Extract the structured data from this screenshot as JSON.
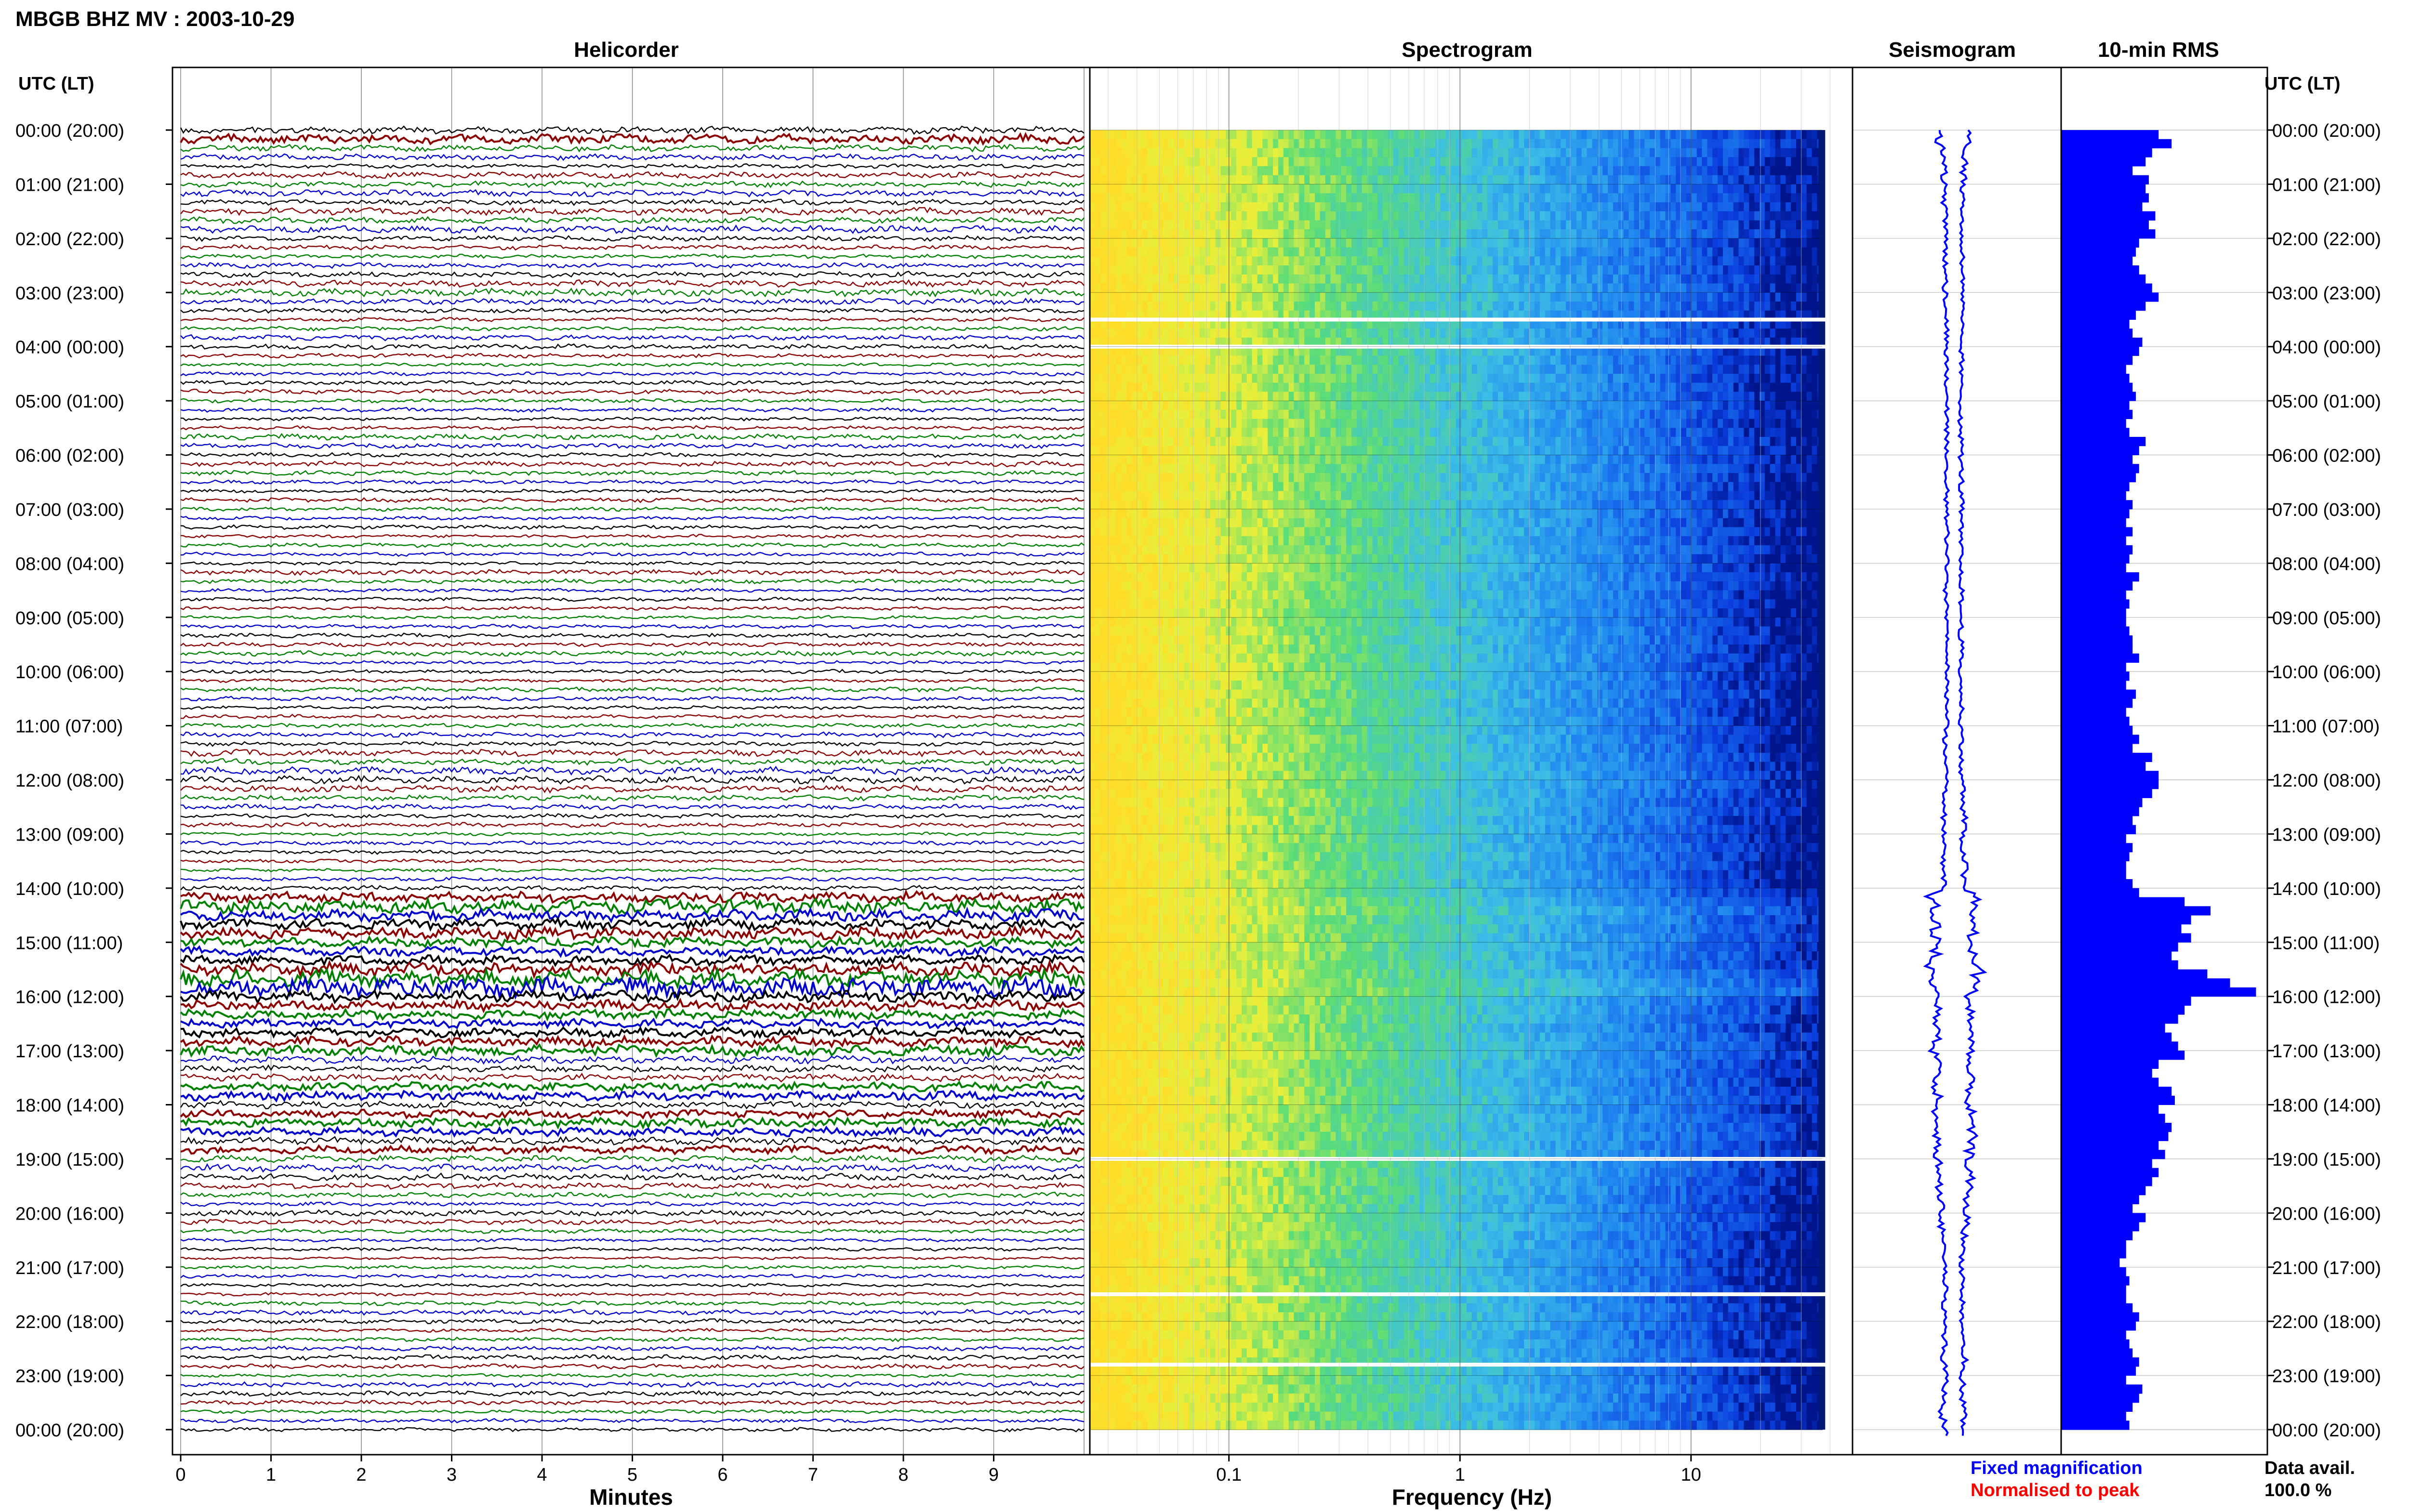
{
  "header": {
    "station_title": "MBGB BHZ MV : 2003-10-29",
    "utc_lt_label": "UTC (LT)"
  },
  "panels": {
    "helicorder_title": "Helicorder",
    "spectrogram_title": "Spectrogram",
    "seismogram_title": "Seismogram",
    "rms_title": "10-min RMS"
  },
  "footer": {
    "fixed_magnification": "Fixed magnification",
    "normalised_to_peak": "Normalised to peak",
    "data_avail_label": "Data avail.",
    "data_avail_value": "100.0 %"
  },
  "colors": {
    "trace_cycle": [
      "#000000",
      "#8b0000",
      "#008000",
      "#0000cc"
    ],
    "rms_bar": "#0000ff",
    "seismogram": "#0000ff",
    "fixed_magnification": "#0000ff",
    "normalised_to_peak": "#ff0000"
  },
  "chart_data": [
    {
      "type": "line",
      "panel": "helicorder",
      "xlabel": "Minutes",
      "x_ticks": [
        "0",
        "1",
        "2",
        "3",
        "4",
        "5",
        "6",
        "7",
        "8",
        "9"
      ],
      "xlim": [
        0,
        10
      ],
      "traces_per_hour": 6,
      "hours": 24,
      "time_labels": [
        "00:00 (20:00)",
        "01:00 (21:00)",
        "02:00 (22:00)",
        "03:00 (23:00)",
        "04:00 (00:00)",
        "05:00 (01:00)",
        "06:00 (02:00)",
        "07:00 (03:00)",
        "08:00 (04:00)",
        "09:00 (05:00)",
        "10:00 (06:00)",
        "11:00 (07:00)",
        "12:00 (08:00)",
        "13:00 (09:00)",
        "14:00 (10:00)",
        "15:00 (11:00)",
        "16:00 (12:00)",
        "17:00 (13:00)",
        "18:00 (14:00)",
        "19:00 (15:00)",
        "20:00 (16:00)",
        "21:00 (17:00)",
        "22:00 (18:00)",
        "23:00 (19:00)",
        "00:00 (20:00)"
      ]
    },
    {
      "type": "heatmap",
      "panel": "spectrogram",
      "xlabel": "Frequency (Hz)",
      "x_scale": "log",
      "x_ticks": [
        "0.1",
        "1",
        "10"
      ],
      "xlim": [
        0.025,
        50
      ],
      "data_gap_hours": [
        3.5,
        4.0,
        19.0,
        21.5,
        22.8
      ]
    },
    {
      "type": "line",
      "panel": "seismogram",
      "description_values": "relative amplitude per 10-min window",
      "amplitude": [
        0.3,
        0.28,
        0.2,
        0.22,
        0.18,
        0.2,
        0.16,
        0.17,
        0.18,
        0.15,
        0.16,
        0.14,
        0.15,
        0.16,
        0.17,
        0.18,
        0.16,
        0.2,
        0.15,
        0.16,
        0.14,
        0.15,
        0.13,
        0.14,
        0.14,
        0.15,
        0.14,
        0.13,
        0.15,
        0.14,
        0.13,
        0.14,
        0.12,
        0.13,
        0.14,
        0.15,
        0.13,
        0.14,
        0.15,
        0.13,
        0.14,
        0.15,
        0.13,
        0.14,
        0.12,
        0.13,
        0.14,
        0.13,
        0.13,
        0.14,
        0.15,
        0.14,
        0.13,
        0.14,
        0.14,
        0.13,
        0.14,
        0.15,
        0.13,
        0.12,
        0.13,
        0.14,
        0.13,
        0.15,
        0.14,
        0.13,
        0.14,
        0.16,
        0.15,
        0.14,
        0.13,
        0.15,
        0.18,
        0.17,
        0.16,
        0.2,
        0.19,
        0.18,
        0.16,
        0.17,
        0.2,
        0.22,
        0.18,
        0.19,
        0.42,
        0.38,
        0.4,
        0.34,
        0.36,
        0.3,
        0.34,
        0.38,
        0.48,
        0.44,
        0.35,
        0.3,
        0.3,
        0.33,
        0.32,
        0.3,
        0.34,
        0.36,
        0.28,
        0.27,
        0.3,
        0.32,
        0.3,
        0.28,
        0.32,
        0.3,
        0.34,
        0.33,
        0.3,
        0.31,
        0.27,
        0.3,
        0.28,
        0.26,
        0.22,
        0.24,
        0.26,
        0.2,
        0.18,
        0.17,
        0.16,
        0.15,
        0.17,
        0.16,
        0.15,
        0.17,
        0.15,
        0.14,
        0.18,
        0.17,
        0.18,
        0.2,
        0.16,
        0.15,
        0.17,
        0.16,
        0.18,
        0.22,
        0.17,
        0.16
      ]
    },
    {
      "type": "bar",
      "panel": "10-min RMS",
      "orientation": "horizontal",
      "values": [
        0.3,
        0.34,
        0.28,
        0.26,
        0.22,
        0.27,
        0.26,
        0.27,
        0.25,
        0.29,
        0.27,
        0.29,
        0.24,
        0.23,
        0.22,
        0.24,
        0.26,
        0.28,
        0.3,
        0.26,
        0.23,
        0.21,
        0.22,
        0.25,
        0.24,
        0.22,
        0.2,
        0.21,
        0.22,
        0.23,
        0.21,
        0.22,
        0.2,
        0.21,
        0.26,
        0.24,
        0.22,
        0.24,
        0.23,
        0.21,
        0.2,
        0.22,
        0.21,
        0.2,
        0.22,
        0.2,
        0.22,
        0.21,
        0.2,
        0.24,
        0.22,
        0.2,
        0.21,
        0.2,
        0.2,
        0.21,
        0.22,
        0.22,
        0.24,
        0.2,
        0.21,
        0.2,
        0.23,
        0.22,
        0.2,
        0.21,
        0.22,
        0.24,
        0.22,
        0.28,
        0.26,
        0.3,
        0.3,
        0.28,
        0.25,
        0.24,
        0.22,
        0.23,
        0.2,
        0.22,
        0.21,
        0.2,
        0.2,
        0.22,
        0.24,
        0.38,
        0.46,
        0.4,
        0.37,
        0.4,
        0.36,
        0.34,
        0.36,
        0.45,
        0.52,
        0.6,
        0.4,
        0.38,
        0.36,
        0.32,
        0.34,
        0.36,
        0.38,
        0.3,
        0.28,
        0.3,
        0.34,
        0.35,
        0.3,
        0.32,
        0.34,
        0.33,
        0.3,
        0.32,
        0.28,
        0.3,
        0.28,
        0.26,
        0.24,
        0.22,
        0.26,
        0.24,
        0.22,
        0.2,
        0.2,
        0.18,
        0.2,
        0.21,
        0.2,
        0.2,
        0.22,
        0.24,
        0.23,
        0.2,
        0.21,
        0.22,
        0.24,
        0.23,
        0.2,
        0.25,
        0.24,
        0.22,
        0.2,
        0.21
      ]
    }
  ]
}
